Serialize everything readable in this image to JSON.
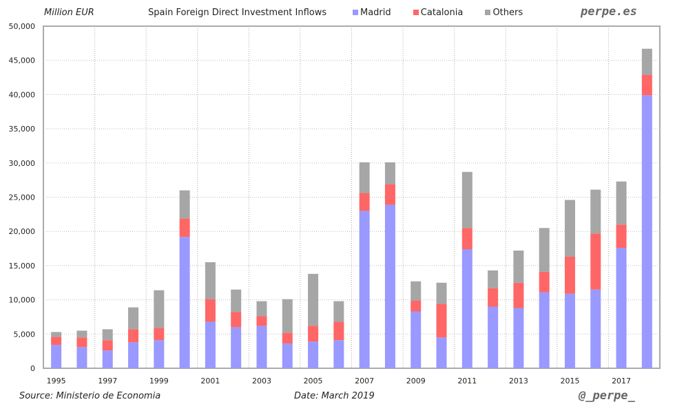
{
  "chart_data": {
    "type": "bar",
    "stacked": true,
    "title": "Spain Foreign Direct Investment Inflows",
    "ylabel": "Million EUR",
    "xlabel": "",
    "ylim": [
      0,
      50000
    ],
    "yticks": [
      "0",
      "5,000",
      "10,000",
      "15,000",
      "20,000",
      "25,000",
      "30,000",
      "35,000",
      "40,000",
      "45,000",
      "50,000"
    ],
    "ytick_values": [
      0,
      5000,
      10000,
      15000,
      20000,
      25000,
      30000,
      35000,
      40000,
      45000,
      50000
    ],
    "categories": [
      "1995",
      "1996",
      "1997",
      "1998",
      "1999",
      "2000",
      "2001",
      "2002",
      "2003",
      "2004",
      "2005",
      "2006",
      "2007",
      "2008",
      "2009",
      "2010",
      "2011",
      "2012",
      "2013",
      "2014",
      "2015",
      "2016",
      "2017",
      "2018"
    ],
    "xtick_labels": [
      "1995",
      "1997",
      "1999",
      "2001",
      "2003",
      "2005",
      "2007",
      "2009",
      "2011",
      "2013",
      "2015",
      "2017"
    ],
    "legend_position": "top",
    "grid": true,
    "series": [
      {
        "name": "Madrid",
        "color": "#9999ff",
        "values": [
          3400,
          3100,
          2600,
          3800,
          4100,
          19200,
          6800,
          6000,
          6200,
          3600,
          3900,
          4100,
          23000,
          23900,
          8300,
          4500,
          17400,
          9000,
          8800,
          11100,
          10900,
          11500,
          17600,
          39900
        ]
      },
      {
        "name": "Catalonia",
        "color": "#ff6666",
        "values": [
          1200,
          1400,
          1500,
          1900,
          1800,
          2700,
          3300,
          2200,
          1400,
          1600,
          2300,
          2700,
          2600,
          3000,
          1600,
          4900,
          3100,
          2700,
          3700,
          3000,
          5400,
          8200,
          3400,
          3000
        ]
      },
      {
        "name": "Others",
        "color": "#a6a6a6",
        "values": [
          700,
          1000,
          1600,
          3200,
          5500,
          4100,
          5400,
          3300,
          2200,
          4900,
          7600,
          3000,
          4500,
          3200,
          2800,
          3100,
          8200,
          2600,
          4700,
          6400,
          8300,
          6400,
          6300,
          3800
        ]
      }
    ]
  },
  "header": {
    "unit": "Million EUR",
    "brand": "perpe.es"
  },
  "footer": {
    "source": "Source: Ministerio de Economia",
    "date": "Date: March 2019",
    "handle": "@_perpe_"
  }
}
